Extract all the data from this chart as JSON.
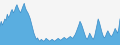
{
  "values": [
    40,
    50,
    42,
    48,
    55,
    52,
    65,
    58,
    62,
    70,
    75,
    68,
    72,
    80,
    85,
    78,
    72,
    68,
    75,
    82,
    88,
    78,
    72,
    68,
    62,
    55,
    45,
    35,
    25,
    18,
    12,
    15,
    10,
    8,
    12,
    10,
    8,
    10,
    14,
    12,
    10,
    8,
    10,
    12,
    10,
    8,
    10,
    12,
    14,
    12,
    10,
    12,
    14,
    16,
    14,
    12,
    14,
    16,
    18,
    16,
    14,
    18,
    22,
    28,
    35,
    42,
    50,
    45,
    38,
    30,
    22,
    15,
    12,
    18,
    25,
    20,
    15,
    12,
    18,
    30,
    42,
    55,
    48,
    38,
    28,
    20,
    15,
    18,
    25,
    30,
    25,
    20,
    18,
    22,
    28,
    35,
    30,
    25,
    35,
    55
  ],
  "fill_color": "#5aaee0",
  "line_color": "#3a8cc8",
  "background_color": "#f5f5f5",
  "ylim_min": 0,
  "ylim_max": 95
}
